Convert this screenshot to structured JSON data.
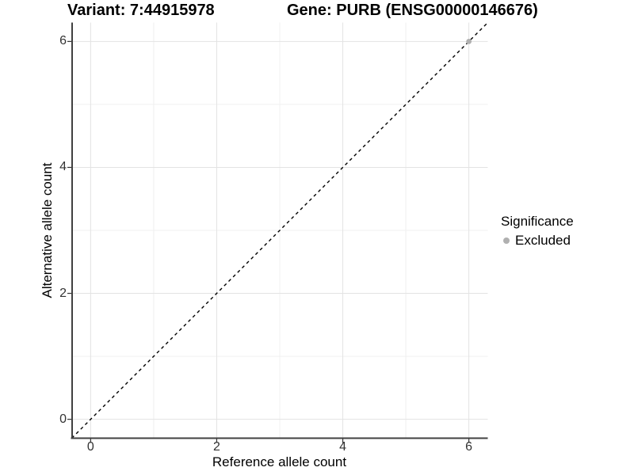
{
  "header": {
    "variant_title": "Variant: 7:44915978",
    "gene_title": "Gene: PURB (ENSG00000146676)"
  },
  "chart_data": {
    "type": "scatter",
    "title_left": "Variant: 7:44915978",
    "title_right": "Gene: PURB (ENSG00000146676)",
    "xlabel": "Reference allele count",
    "ylabel": "Alternative allele count",
    "xlim": [
      -0.3,
      6.3
    ],
    "ylim": [
      -0.3,
      6.3
    ],
    "x_ticks": [
      0,
      2,
      4,
      6
    ],
    "y_ticks": [
      0,
      2,
      4,
      6
    ],
    "x_minor_ticks": [
      1,
      3,
      5
    ],
    "y_minor_ticks": [
      1,
      3,
      5
    ],
    "grid": "major and minor, light gray on white",
    "identity_line": {
      "style": "dashed",
      "x1": -0.3,
      "y1": -0.3,
      "x2": 6.3,
      "y2": 6.3
    },
    "series": [
      {
        "name": "Excluded",
        "color": "#b0b0b0",
        "point_radius": 3.4,
        "points": [
          [
            6,
            6
          ]
        ]
      }
    ],
    "legend": {
      "title": "Significance",
      "position": "right",
      "items": [
        {
          "label": "Excluded",
          "color": "#b0b0b0"
        }
      ]
    }
  },
  "colors": {
    "background": "#ffffff",
    "axis_line": "#404040",
    "tick_mark": "#333333",
    "grid_major": "#e3e3e3",
    "grid_minor": "#f0f0f0",
    "identity_line": "#000000",
    "point": "#b0b0b0",
    "tick_label": "#333333",
    "text": "#000000"
  }
}
